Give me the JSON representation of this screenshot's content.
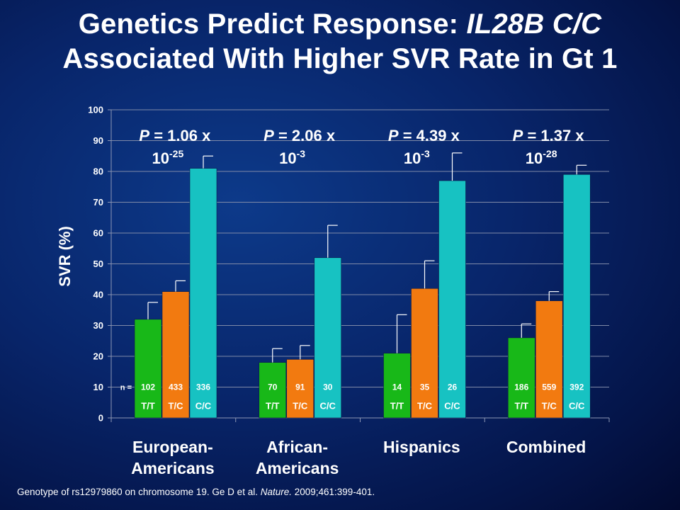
{
  "title": {
    "line1_prefix": "Genetics Predict Response: ",
    "line1_italic": "IL28B C/C",
    "line2": "Associated With Higher SVR Rate in Gt 1"
  },
  "footnote": {
    "prefix": "Genotype of rs12979860 on chromosome 19. Ge D et al. ",
    "journal": "Nature.",
    "suffix": " 2009;461:399-401."
  },
  "colors": {
    "T/T": "#18b818",
    "T/C": "#f27a10",
    "C/C": "#17c2c2",
    "grid": "#7f8aa8",
    "axis": "#8c96b4"
  },
  "chart_data": {
    "type": "bar",
    "ylabel": "SVR (%)",
    "ylim": [
      0,
      100
    ],
    "yticks": [
      0,
      10,
      20,
      30,
      40,
      50,
      60,
      70,
      80,
      90,
      100
    ],
    "grid": true,
    "n_label": "n =",
    "categories": [
      "European-\nAmericans",
      "African-\nAmericans",
      "Hispanics",
      "Combined"
    ],
    "groups": [
      {
        "category": "European-\nAmericans",
        "p_value": {
          "italic": "P",
          "text": " = 1.06 x",
          "base": "10",
          "exp": "-25"
        },
        "bars": [
          {
            "genotype": "T/T",
            "value": 32,
            "err_upper": 37.5,
            "n": "102"
          },
          {
            "genotype": "T/C",
            "value": 41,
            "err_upper": 44.5,
            "n": "433"
          },
          {
            "genotype": "C/C",
            "value": 81,
            "err_upper": 85,
            "n": "336"
          }
        ]
      },
      {
        "category": "African-\nAmericans",
        "p_value": {
          "italic": "P",
          "text": " = 2.06 x",
          "base": "10",
          "exp": "-3"
        },
        "bars": [
          {
            "genotype": "T/T",
            "value": 18,
            "err_upper": 22.5,
            "n": "70"
          },
          {
            "genotype": "T/C",
            "value": 19,
            "err_upper": 23.5,
            "n": "91"
          },
          {
            "genotype": "C/C",
            "value": 52,
            "err_upper": 62.5,
            "n": "30"
          }
        ]
      },
      {
        "category": "Hispanics",
        "p_value": {
          "italic": "P",
          "text": " = 4.39 x",
          "base": "10",
          "exp": "-3"
        },
        "bars": [
          {
            "genotype": "T/T",
            "value": 21,
            "err_upper": 33.5,
            "n": "14"
          },
          {
            "genotype": "T/C",
            "value": 42,
            "err_upper": 51,
            "n": "35"
          },
          {
            "genotype": "C/C",
            "value": 77,
            "err_upper": 86,
            "n": "26"
          }
        ]
      },
      {
        "category": "Combined",
        "p_value": {
          "italic": "P",
          "text": " = 1.37 x",
          "base": "10",
          "exp": "-28"
        },
        "bars": [
          {
            "genotype": "T/T",
            "value": 26,
            "err_upper": 30.5,
            "n": "186"
          },
          {
            "genotype": "T/C",
            "value": 38,
            "err_upper": 41,
            "n": "559"
          },
          {
            "genotype": "C/C",
            "value": 79,
            "err_upper": 82,
            "n": "392"
          }
        ]
      }
    ]
  }
}
